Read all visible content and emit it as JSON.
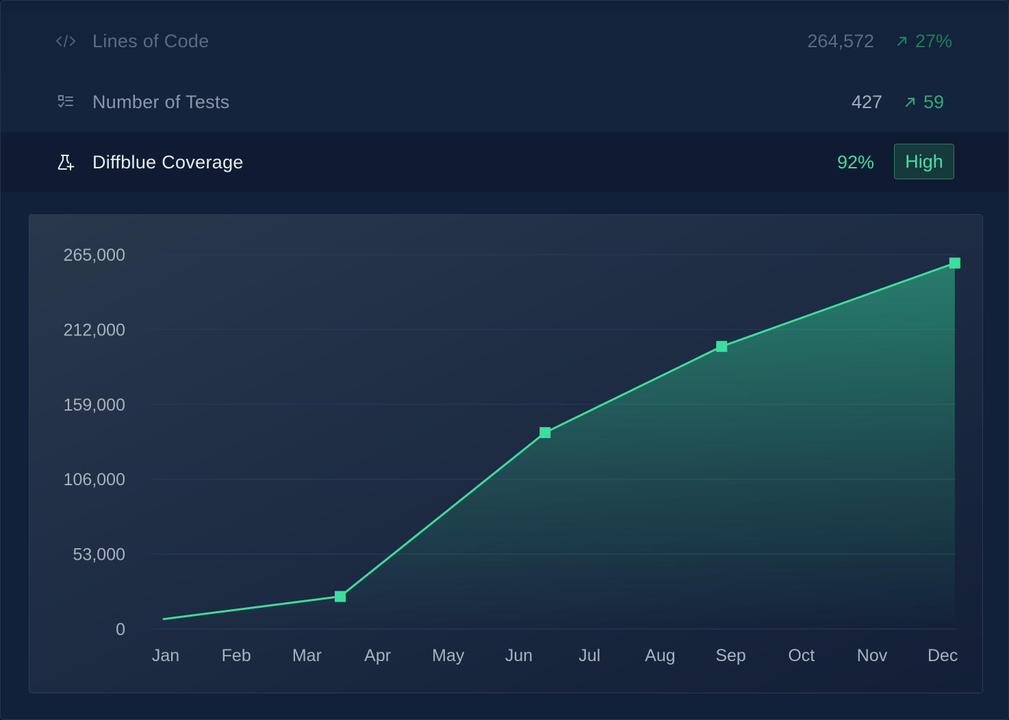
{
  "metrics": {
    "lines_of_code": {
      "label": "Lines of Code",
      "value": "264,572",
      "delta": "27%",
      "icon": "code-icon",
      "delta_icon": "arrow-up-right-icon"
    },
    "tests": {
      "label": "Number of Tests",
      "value": "427",
      "delta": "59",
      "icon": "checklist-icon",
      "delta_icon": "arrow-up-right-icon"
    },
    "coverage": {
      "label": "Diffblue Coverage",
      "value": "92%",
      "badge": "High",
      "icon": "flask-plus-icon"
    }
  },
  "colors": {
    "accent": "#3ddc9f",
    "background": "#12213a",
    "grid": "#2c3d55",
    "axis_text": "#a7b1bf"
  },
  "chart_data": {
    "type": "area",
    "categories": [
      "Jan",
      "Feb",
      "Mar",
      "Apr",
      "May",
      "Jun",
      "Jul",
      "Aug",
      "Sep",
      "Oct",
      "Nov",
      "Dec"
    ],
    "y_ticks": [
      "265,000",
      "212,000",
      "159,000",
      "106,000",
      "53,000",
      "0"
    ],
    "y_tick_values": [
      265000,
      212000,
      159000,
      106000,
      53000,
      0
    ],
    "ylim": [
      0,
      265000
    ],
    "points": [
      {
        "x": 0,
        "y": 7000,
        "marker": false
      },
      {
        "x": 2.5,
        "y": 23000,
        "marker": true
      },
      {
        "x": 5.4,
        "y": 139000,
        "marker": true
      },
      {
        "x": 7.9,
        "y": 200000,
        "marker": true
      },
      {
        "x": 11.2,
        "y": 259000,
        "marker": true
      }
    ],
    "grid": true,
    "legend": "none"
  }
}
